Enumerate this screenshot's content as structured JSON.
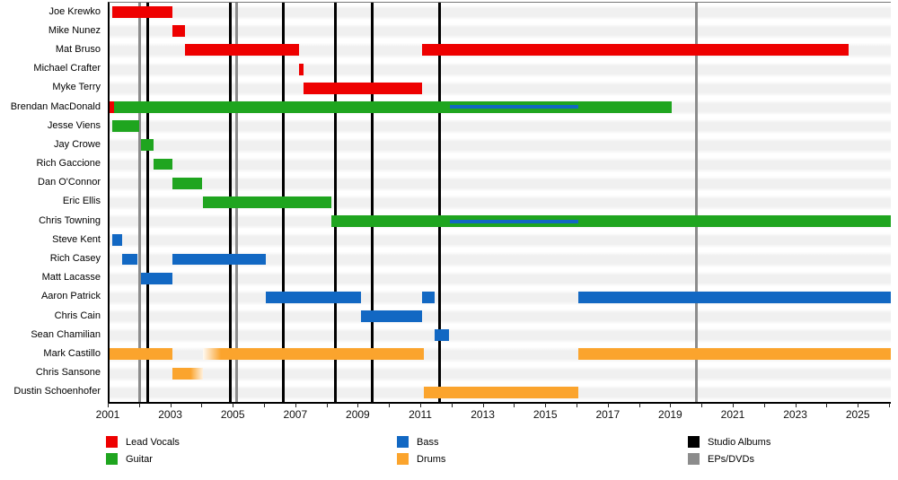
{
  "chart_data": {
    "type": "timeline",
    "description": "Band members timeline (Gantt-style) with role bars and release event lines",
    "x_axis": {
      "start": 2001,
      "end": 2026,
      "tick_interval": 1,
      "label_years": [
        2001,
        2003,
        2005,
        2007,
        2009,
        2011,
        2013,
        2015,
        2017,
        2019,
        2021,
        2023,
        2025
      ]
    },
    "colors": {
      "lead_vocals": "#ee0000",
      "guitar": "#1fa51f",
      "bass": "#1268c3",
      "drums": "#fba42d",
      "studio_albums": "#000000",
      "eps_dvds": "#8c8c8c"
    },
    "members": [
      {
        "name": "Joe Krewko",
        "bars": [
          {
            "role": "lead_vocals",
            "start": 2001.1,
            "end": 2003.0
          }
        ]
      },
      {
        "name": "Mike Nunez",
        "bars": [
          {
            "role": "lead_vocals",
            "start": 2003.0,
            "end": 2003.4
          }
        ]
      },
      {
        "name": "Mat Bruso",
        "bars": [
          {
            "role": "lead_vocals",
            "start": 2003.4,
            "end": 2007.05
          },
          {
            "role": "lead_vocals",
            "start": 2011.0,
            "end": 2024.65
          }
        ]
      },
      {
        "name": "Michael Crafter",
        "bars": [
          {
            "role": "lead_vocals",
            "start": 2007.05,
            "end": 2007.2
          }
        ]
      },
      {
        "name": "Myke Terry",
        "bars": [
          {
            "role": "lead_vocals",
            "start": 2007.2,
            "end": 2011.0
          }
        ]
      },
      {
        "name": "Brendan MacDonald",
        "bars": [
          {
            "role": "lead_vocals",
            "start": 2001.0,
            "end": 2001.15
          },
          {
            "role": "guitar",
            "start": 2001.15,
            "end": 2019.0,
            "overlay": {
              "role": "bass",
              "start": 2011.9,
              "end": 2016.0
            }
          }
        ]
      },
      {
        "name": "Jesse Viens",
        "bars": [
          {
            "role": "guitar",
            "start": 2001.1,
            "end": 2001.95
          }
        ]
      },
      {
        "name": "Jay Crowe",
        "bars": [
          {
            "role": "guitar",
            "start": 2002.0,
            "end": 2002.4
          }
        ]
      },
      {
        "name": "Rich Gaccione",
        "bars": [
          {
            "role": "guitar",
            "start": 2002.4,
            "end": 2003.0
          }
        ]
      },
      {
        "name": "Dan O'Connor",
        "bars": [
          {
            "role": "guitar",
            "start": 2003.0,
            "end": 2003.95
          }
        ]
      },
      {
        "name": "Eric Ellis",
        "bars": [
          {
            "role": "guitar",
            "start": 2004.0,
            "end": 2008.1
          }
        ]
      },
      {
        "name": "Chris Towning",
        "bars": [
          {
            "role": "guitar",
            "start": 2008.1,
            "end": 2026.0,
            "overlay": {
              "role": "bass",
              "start": 2011.9,
              "end": 2016.0
            }
          }
        ]
      },
      {
        "name": "Steve Kent",
        "bars": [
          {
            "role": "bass",
            "start": 2001.1,
            "end": 2001.4
          }
        ]
      },
      {
        "name": "Rich Casey",
        "bars": [
          {
            "role": "bass",
            "start": 2001.4,
            "end": 2001.9
          },
          {
            "role": "bass",
            "start": 2003.0,
            "end": 2006.0
          }
        ]
      },
      {
        "name": "Matt Lacasse",
        "bars": [
          {
            "role": "bass",
            "start": 2002.0,
            "end": 2003.0
          }
        ]
      },
      {
        "name": "Aaron Patrick",
        "bars": [
          {
            "role": "bass",
            "start": 2006.0,
            "end": 2009.05
          },
          {
            "role": "bass",
            "start": 2011.0,
            "end": 2011.4
          },
          {
            "role": "bass",
            "start": 2016.0,
            "end": 2026.0
          }
        ]
      },
      {
        "name": "Chris Cain",
        "bars": [
          {
            "role": "bass",
            "start": 2009.05,
            "end": 2011.0
          }
        ]
      },
      {
        "name": "Sean Chamilian",
        "bars": [
          {
            "role": "bass",
            "start": 2011.4,
            "end": 2011.85
          }
        ]
      },
      {
        "name": "Mark Castillo",
        "bars": [
          {
            "role": "drums",
            "start": 2001.0,
            "end": 2003.0
          },
          {
            "role": "drums",
            "start": 2004.0,
            "end": 2011.05,
            "fade": "left"
          },
          {
            "role": "drums",
            "start": 2016.0,
            "end": 2026.0
          }
        ]
      },
      {
        "name": "Chris Sansone",
        "bars": [
          {
            "role": "drums",
            "start": 2003.0,
            "end": 2004.0,
            "fade": "right"
          }
        ]
      },
      {
        "name": "Dustin Schoenhofer",
        "bars": [
          {
            "role": "drums",
            "start": 2011.05,
            "end": 2016.0
          }
        ]
      }
    ],
    "events": [
      {
        "label": "Studio Albums",
        "role": "studio_albums",
        "years": [
          2002.2,
          2004.85,
          2006.55,
          2008.2,
          2009.4,
          2011.55
        ]
      },
      {
        "label": "EPs/DVDs",
        "role": "eps_dvds",
        "years": [
          2001.95,
          2005.05,
          2019.75
        ]
      }
    ],
    "legend": [
      {
        "items": [
          {
            "label": "Lead Vocals",
            "role": "lead_vocals"
          },
          {
            "label": "Guitar",
            "role": "guitar"
          }
        ]
      },
      {
        "items": [
          {
            "label": "Bass",
            "role": "bass"
          },
          {
            "label": "Drums",
            "role": "drums"
          }
        ]
      },
      {
        "items": [
          {
            "label": "Studio Albums",
            "role": "studio_albums"
          },
          {
            "label": "EPs/DVDs",
            "role": "eps_dvds"
          }
        ]
      }
    ]
  }
}
